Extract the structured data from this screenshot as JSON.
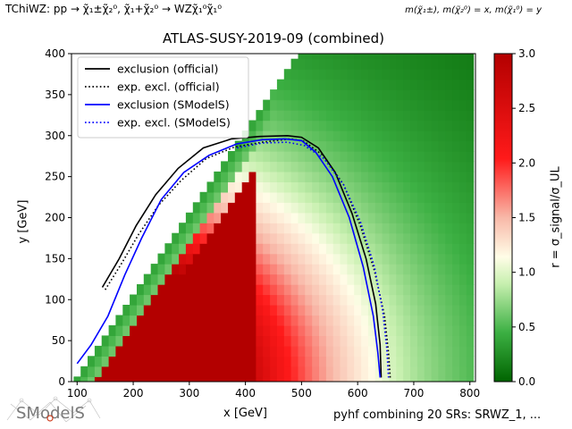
{
  "header": {
    "process": "TChiWZ: pp → χ̃₁±χ̃₂⁰, χ̃₁+χ̃₂⁰ → WZχ̃₁⁰χ̃₁⁰",
    "mass_mapping": "m(χ̃₁±), m(χ̃₂⁰) = x, m(χ̃₁⁰) = y"
  },
  "footer": {
    "combination": "pyhf combining 20 SRs: SRWZ_1, ...",
    "logo_text": "SModelS"
  },
  "colors": {
    "official": "#000000",
    "smodels": "#0000ff",
    "cmap_low": "#006400",
    "cmap_mid": "#fffde7",
    "cmap_high": "#b30000"
  },
  "chart_data": {
    "type": "heatmap",
    "title": "ATLAS-SUSY-2019-09 (combined)",
    "xlabel": "x [GeV]",
    "ylabel": "y [GeV]",
    "xlim": [
      90,
      810
    ],
    "ylim": [
      0,
      400
    ],
    "xticks": [
      100,
      200,
      300,
      400,
      500,
      600,
      700,
      800
    ],
    "yticks": [
      0,
      50,
      100,
      150,
      200,
      250,
      300,
      350,
      400
    ],
    "grid": false,
    "legend_position": "top-left",
    "colorbar": {
      "label": "r = σ_signal/σ_UL",
      "range": [
        0,
        3
      ],
      "ticks": [
        0.0,
        0.5,
        1.0,
        1.5,
        2.0,
        2.5,
        3.0
      ],
      "tick_labels": [
        "0.0",
        "0.5",
        "1.0",
        "1.5",
        "2.0",
        "2.5",
        "3.0"
      ]
    },
    "series": [
      {
        "name": "exclusion (official)",
        "color": "#000000",
        "dash": "solid",
        "x": [
          145,
          175,
          205,
          240,
          280,
          325,
          375,
          425,
          475,
          500,
          530,
          560,
          590,
          615,
          632,
          640,
          642
        ],
        "y": [
          115,
          150,
          190,
          228,
          260,
          285,
          296,
          299,
          300,
          298,
          285,
          255,
          205,
          150,
          95,
          45,
          5
        ]
      },
      {
        "name": "exp. excl. (official)",
        "color": "#000000",
        "dash": "dotted",
        "x": [
          150,
          180,
          210,
          245,
          285,
          330,
          380,
          430,
          480,
          505,
          540,
          575,
          605,
          630,
          648,
          655,
          658
        ],
        "y": [
          112,
          145,
          180,
          215,
          245,
          272,
          286,
          292,
          296,
          293,
          275,
          240,
          190,
          135,
          80,
          35,
          5
        ]
      },
      {
        "name": "exclusion (SModelS)",
        "color": "#0000ff",
        "dash": "solid",
        "x": [
          100,
          125,
          155,
          185,
          215,
          250,
          290,
          335,
          385,
          430,
          470,
          500,
          525,
          555,
          585,
          610,
          628,
          636,
          640
        ],
        "y": [
          22,
          45,
          80,
          130,
          175,
          222,
          255,
          276,
          290,
          295,
          296,
          294,
          280,
          250,
          200,
          140,
          80,
          35,
          5
        ]
      },
      {
        "name": "exp. excl. (SModelS)",
        "color": "#0000ff",
        "dash": "dotted",
        "x": [
          385,
          430,
          475,
          505,
          540,
          575,
          605,
          630,
          645,
          652,
          655
        ],
        "y": [
          285,
          291,
          292,
          288,
          272,
          240,
          195,
          140,
          85,
          40,
          5
        ]
      }
    ]
  }
}
